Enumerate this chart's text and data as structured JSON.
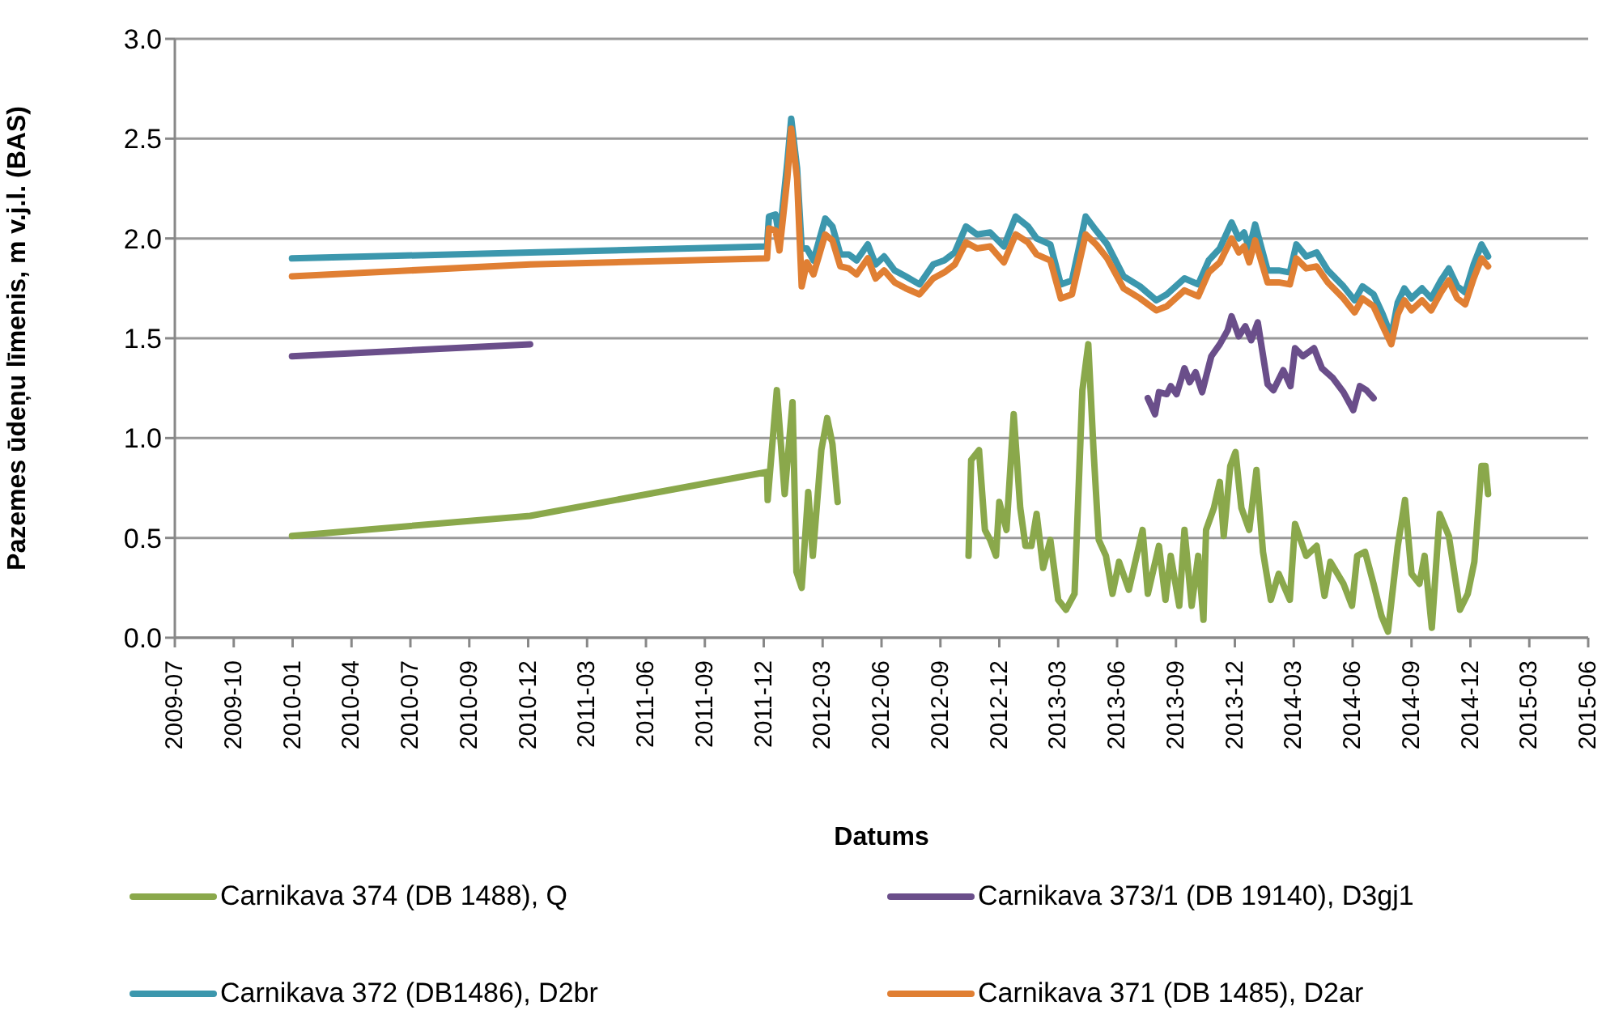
{
  "chart_data": {
    "type": "line",
    "xlabel": "Datums",
    "ylabel": "Pazemes ūdeņu līmenis, m v.j.l. (BAS)",
    "xlim": [
      "2009-07-06",
      "2015-06-05"
    ],
    "xticks": [
      {
        "value": "2009-07-06",
        "label": "2009-07"
      },
      {
        "value": "2009-10-04",
        "label": "2009-10"
      },
      {
        "value": "2010-01-02",
        "label": "2010-01"
      },
      {
        "value": "2010-04-02",
        "label": "2010-04"
      },
      {
        "value": "2010-07-01",
        "label": "2010-07"
      },
      {
        "value": "2010-09-29",
        "label": "2010-09"
      },
      {
        "value": "2010-12-28",
        "label": "2010-12"
      },
      {
        "value": "2011-03-28",
        "label": "2011-03"
      },
      {
        "value": "2011-06-26",
        "label": "2011-06"
      },
      {
        "value": "2011-09-24",
        "label": "2011-09"
      },
      {
        "value": "2011-12-23",
        "label": "2011-12"
      },
      {
        "value": "2012-03-22",
        "label": "2012-03"
      },
      {
        "value": "2012-06-20",
        "label": "2012-06"
      },
      {
        "value": "2012-09-18",
        "label": "2012-09"
      },
      {
        "value": "2012-12-17",
        "label": "2012-12"
      },
      {
        "value": "2013-03-17",
        "label": "2013-03"
      },
      {
        "value": "2013-06-15",
        "label": "2013-06"
      },
      {
        "value": "2013-09-13",
        "label": "2013-09"
      },
      {
        "value": "2013-12-12",
        "label": "2013-12"
      },
      {
        "value": "2014-03-12",
        "label": "2014-03"
      },
      {
        "value": "2014-06-10",
        "label": "2014-06"
      },
      {
        "value": "2014-09-08",
        "label": "2014-09"
      },
      {
        "value": "2014-12-07",
        "label": "2014-12"
      },
      {
        "value": "2015-03-07",
        "label": "2015-03"
      },
      {
        "value": "2015-06-05",
        "label": "2015-06"
      }
    ],
    "ylim": [
      0,
      3
    ],
    "yticks": [
      {
        "value": 0,
        "label": "0.0"
      },
      {
        "value": 0.5,
        "label": "0.5"
      },
      {
        "value": 1,
        "label": "1.0"
      },
      {
        "value": 1.5,
        "label": "1.5"
      },
      {
        "value": 2,
        "label": "2.0"
      },
      {
        "value": 2.5,
        "label": "2.5"
      },
      {
        "value": 3,
        "label": "3.0"
      }
    ],
    "grid": "y",
    "legend": "bottom",
    "marker": "none",
    "line_style": "solid",
    "series": [
      {
        "name": "Carnikava 374 (DB 1488), Q",
        "color": "#8aa84b",
        "x": [
          "2010-01-01",
          "2010-12-31",
          "2011-12-28",
          "2011-12-29",
          "2012-01-12",
          "2012-01-24",
          "2012-02-05",
          "2012-02-11",
          "2012-02-19",
          "2012-02-29",
          "2012-03-07",
          "2012-03-20",
          "2012-03-29",
          "2012-04-06",
          "2012-04-14",
          "2012-07-15",
          "2012-10-31",
          "2012-11-04",
          "2012-11-16",
          "2012-11-25",
          "2012-12-03",
          "2012-12-12",
          "2012-12-17",
          "2012-12-28",
          "2013-01-08",
          "2013-01-18",
          "2013-01-26",
          "2013-02-04",
          "2013-02-12",
          "2013-02-22",
          "2013-03-05",
          "2013-03-17",
          "2013-03-29",
          "2013-04-11",
          "2013-04-23",
          "2013-05-02",
          "2013-05-10",
          "2013-05-18",
          "2013-05-29",
          "2013-06-08",
          "2013-06-18",
          "2013-07-03",
          "2013-07-24",
          "2013-08-01",
          "2013-08-18",
          "2013-08-28",
          "2013-09-05",
          "2013-09-18",
          "2013-09-26",
          "2013-10-07",
          "2013-10-17",
          "2013-10-25",
          "2013-10-29",
          "2013-11-10",
          "2013-11-19",
          "2013-11-25",
          "2013-12-05",
          "2013-12-13",
          "2013-12-22",
          "2014-01-03",
          "2014-01-14",
          "2014-01-24",
          "2014-02-05",
          "2014-02-17",
          "2014-03-06",
          "2014-03-14",
          "2014-03-31",
          "2014-04-16",
          "2014-04-28",
          "2014-05-07",
          "2014-05-27",
          "2014-06-09",
          "2014-06-17",
          "2014-06-29",
          "2014-07-12",
          "2014-07-24",
          "2014-08-03",
          "2014-08-18",
          "2014-08-29",
          "2014-09-08",
          "2014-09-20",
          "2014-09-28",
          "2014-10-09",
          "2014-10-21",
          "2014-11-04",
          "2014-11-21",
          "2014-12-03",
          "2014-12-13",
          "2014-12-24",
          "2014-12-30",
          "2015-01-03"
        ],
        "values": [
          0.51,
          0.61,
          0.83,
          0.69,
          1.24,
          0.72,
          1.18,
          0.33,
          0.25,
          0.73,
          0.41,
          0.94,
          1.1,
          0.97,
          0.68,
          null,
          0.41,
          0.89,
          0.94,
          0.54,
          0.49,
          0.41,
          0.68,
          0.54,
          1.12,
          0.65,
          0.46,
          0.46,
          0.62,
          0.35,
          0.49,
          0.19,
          0.14,
          0.22,
          1.24,
          1.47,
          0.94,
          0.49,
          0.41,
          0.22,
          0.38,
          0.24,
          0.54,
          0.22,
          0.46,
          0.19,
          0.41,
          0.16,
          0.54,
          0.16,
          0.41,
          0.09,
          0.54,
          0.65,
          0.78,
          0.51,
          0.86,
          0.93,
          0.65,
          0.54,
          0.84,
          0.43,
          0.19,
          0.32,
          0.19,
          0.57,
          0.41,
          0.46,
          0.21,
          0.38,
          0.27,
          0.16,
          0.41,
          0.43,
          0.27,
          0.11,
          0.03,
          0.46,
          0.69,
          0.32,
          0.27,
          0.41,
          0.05,
          0.62,
          0.51,
          0.14,
          0.22,
          0.38,
          0.86,
          0.86,
          0.72
        ]
      },
      {
        "name": "Carnikava 373/1 (DB 19140), D3gj1",
        "color": "#6a4e8a",
        "x": [
          "2010-01-01",
          "2010-12-31",
          "2012-06-01",
          "2013-08-01",
          "2013-08-12",
          "2013-08-18",
          "2013-08-30",
          "2013-09-05",
          "2013-09-14",
          "2013-09-26",
          "2013-10-04",
          "2013-10-13",
          "2013-10-23",
          "2013-11-06",
          "2013-11-19",
          "2013-12-01",
          "2013-12-07",
          "2013-12-18",
          "2013-12-28",
          "2014-01-06",
          "2014-01-16",
          "2014-01-31",
          "2014-02-09",
          "2014-02-24",
          "2014-03-07",
          "2014-03-14",
          "2014-03-26",
          "2014-04-12",
          "2014-04-24",
          "2014-05-11",
          "2014-05-27",
          "2014-06-11",
          "2014-06-21",
          "2014-07-01",
          "2014-07-12"
        ],
        "values": [
          1.41,
          1.47,
          null,
          1.2,
          1.12,
          1.23,
          1.22,
          1.26,
          1.22,
          1.35,
          1.28,
          1.33,
          1.23,
          1.41,
          1.47,
          1.54,
          1.61,
          1.51,
          1.56,
          1.49,
          1.58,
          1.27,
          1.24,
          1.34,
          1.26,
          1.45,
          1.41,
          1.45,
          1.35,
          1.3,
          1.23,
          1.14,
          1.26,
          1.24,
          1.2
        ]
      },
      {
        "name": "Carnikava 372 (DB1486), D2br",
        "color": "#3c97ad",
        "x": [
          "2010-01-01",
          "2010-12-31",
          "2011-12-28",
          "2011-12-31",
          "2012-01-10",
          "2012-01-16",
          "2012-01-28",
          "2012-02-03",
          "2012-02-12",
          "2012-02-19",
          "2012-02-27",
          "2012-03-08",
          "2012-03-26",
          "2012-04-06",
          "2012-04-18",
          "2012-05-01",
          "2012-05-13",
          "2012-05-30",
          "2012-06-11",
          "2012-06-24",
          "2012-07-10",
          "2012-07-27",
          "2012-08-17",
          "2012-09-07",
          "2012-09-24",
          "2012-10-10",
          "2012-10-27",
          "2012-11-13",
          "2012-12-03",
          "2012-12-24",
          "2013-01-11",
          "2013-01-30",
          "2013-02-12",
          "2013-03-05",
          "2013-03-21",
          "2013-04-07",
          "2013-04-28",
          "2013-05-14",
          "2013-05-31",
          "2013-06-25",
          "2013-07-20",
          "2013-08-14",
          "2013-08-30",
          "2013-09-26",
          "2013-10-17",
          "2013-11-02",
          "2013-11-19",
          "2013-12-07",
          "2013-12-18",
          "2013-12-26",
          "2014-01-03",
          "2014-01-12",
          "2014-01-31",
          "2014-02-17",
          "2014-03-06",
          "2014-03-16",
          "2014-03-31",
          "2014-04-16",
          "2014-05-03",
          "2014-05-27",
          "2014-06-13",
          "2014-06-25",
          "2014-07-12",
          "2014-07-26",
          "2014-08-08",
          "2014-08-18",
          "2014-08-28",
          "2014-09-08",
          "2014-09-24",
          "2014-10-08",
          "2014-10-23",
          "2014-11-04",
          "2014-11-17",
          "2014-11-29",
          "2014-12-12",
          "2014-12-24",
          "2015-01-03"
        ],
        "values": [
          1.9,
          1.93,
          1.96,
          2.11,
          2.12,
          2.0,
          2.38,
          2.6,
          2.35,
          1.95,
          1.95,
          1.89,
          2.1,
          2.06,
          1.92,
          1.92,
          1.89,
          1.97,
          1.87,
          1.91,
          1.84,
          1.81,
          1.77,
          1.87,
          1.89,
          1.93,
          2.06,
          2.02,
          2.03,
          1.96,
          2.11,
          2.06,
          2.0,
          1.97,
          1.77,
          1.79,
          2.11,
          2.04,
          1.97,
          1.81,
          1.76,
          1.69,
          1.72,
          1.8,
          1.77,
          1.89,
          1.95,
          2.08,
          2.0,
          2.03,
          1.95,
          2.07,
          1.84,
          1.84,
          1.83,
          1.97,
          1.91,
          1.93,
          1.84,
          1.76,
          1.69,
          1.76,
          1.72,
          1.62,
          1.51,
          1.68,
          1.75,
          1.7,
          1.75,
          1.7,
          1.79,
          1.85,
          1.76,
          1.73,
          1.87,
          1.97,
          1.91
        ]
      },
      {
        "name": "Carnikava 371 (DB 1485), D2ar",
        "color": "#e07f33",
        "x": [
          "2010-01-01",
          "2010-12-31",
          "2011-12-28",
          "2011-12-31",
          "2012-01-10",
          "2012-01-16",
          "2012-01-28",
          "2012-02-03",
          "2012-02-12",
          "2012-02-19",
          "2012-02-27",
          "2012-03-08",
          "2012-03-26",
          "2012-04-06",
          "2012-04-18",
          "2012-05-01",
          "2012-05-13",
          "2012-05-30",
          "2012-06-11",
          "2012-06-24",
          "2012-07-10",
          "2012-07-27",
          "2012-08-17",
          "2012-09-07",
          "2012-09-24",
          "2012-10-10",
          "2012-10-27",
          "2012-11-13",
          "2012-12-03",
          "2012-12-24",
          "2013-01-11",
          "2013-01-30",
          "2013-02-12",
          "2013-03-05",
          "2013-03-21",
          "2013-04-07",
          "2013-04-28",
          "2013-05-14",
          "2013-05-31",
          "2013-06-25",
          "2013-07-20",
          "2013-08-14",
          "2013-08-30",
          "2013-09-26",
          "2013-10-17",
          "2013-11-02",
          "2013-11-19",
          "2013-12-07",
          "2013-12-18",
          "2013-12-26",
          "2014-01-03",
          "2014-01-12",
          "2014-01-31",
          "2014-02-17",
          "2014-03-06",
          "2014-03-16",
          "2014-03-31",
          "2014-04-16",
          "2014-05-03",
          "2014-05-27",
          "2014-06-13",
          "2014-06-25",
          "2014-07-12",
          "2014-07-26",
          "2014-08-08",
          "2014-08-18",
          "2014-08-28",
          "2014-09-08",
          "2014-09-24",
          "2014-10-08",
          "2014-10-23",
          "2014-11-04",
          "2014-11-17",
          "2014-11-29",
          "2014-12-12",
          "2014-12-24",
          "2015-01-03"
        ],
        "values": [
          1.81,
          1.87,
          1.9,
          2.05,
          2.04,
          1.94,
          2.3,
          2.55,
          2.3,
          1.76,
          1.88,
          1.82,
          2.02,
          1.99,
          1.86,
          1.85,
          1.82,
          1.9,
          1.8,
          1.84,
          1.78,
          1.75,
          1.72,
          1.8,
          1.83,
          1.87,
          1.98,
          1.95,
          1.96,
          1.88,
          2.02,
          1.98,
          1.92,
          1.89,
          1.7,
          1.72,
          2.02,
          1.97,
          1.9,
          1.75,
          1.7,
          1.64,
          1.66,
          1.74,
          1.71,
          1.83,
          1.88,
          2.0,
          1.93,
          1.96,
          1.88,
          1.99,
          1.78,
          1.78,
          1.77,
          1.9,
          1.85,
          1.86,
          1.78,
          1.7,
          1.63,
          1.7,
          1.66,
          1.56,
          1.47,
          1.62,
          1.69,
          1.64,
          1.69,
          1.64,
          1.73,
          1.79,
          1.7,
          1.67,
          1.8,
          1.9,
          1.86
        ]
      }
    ]
  }
}
